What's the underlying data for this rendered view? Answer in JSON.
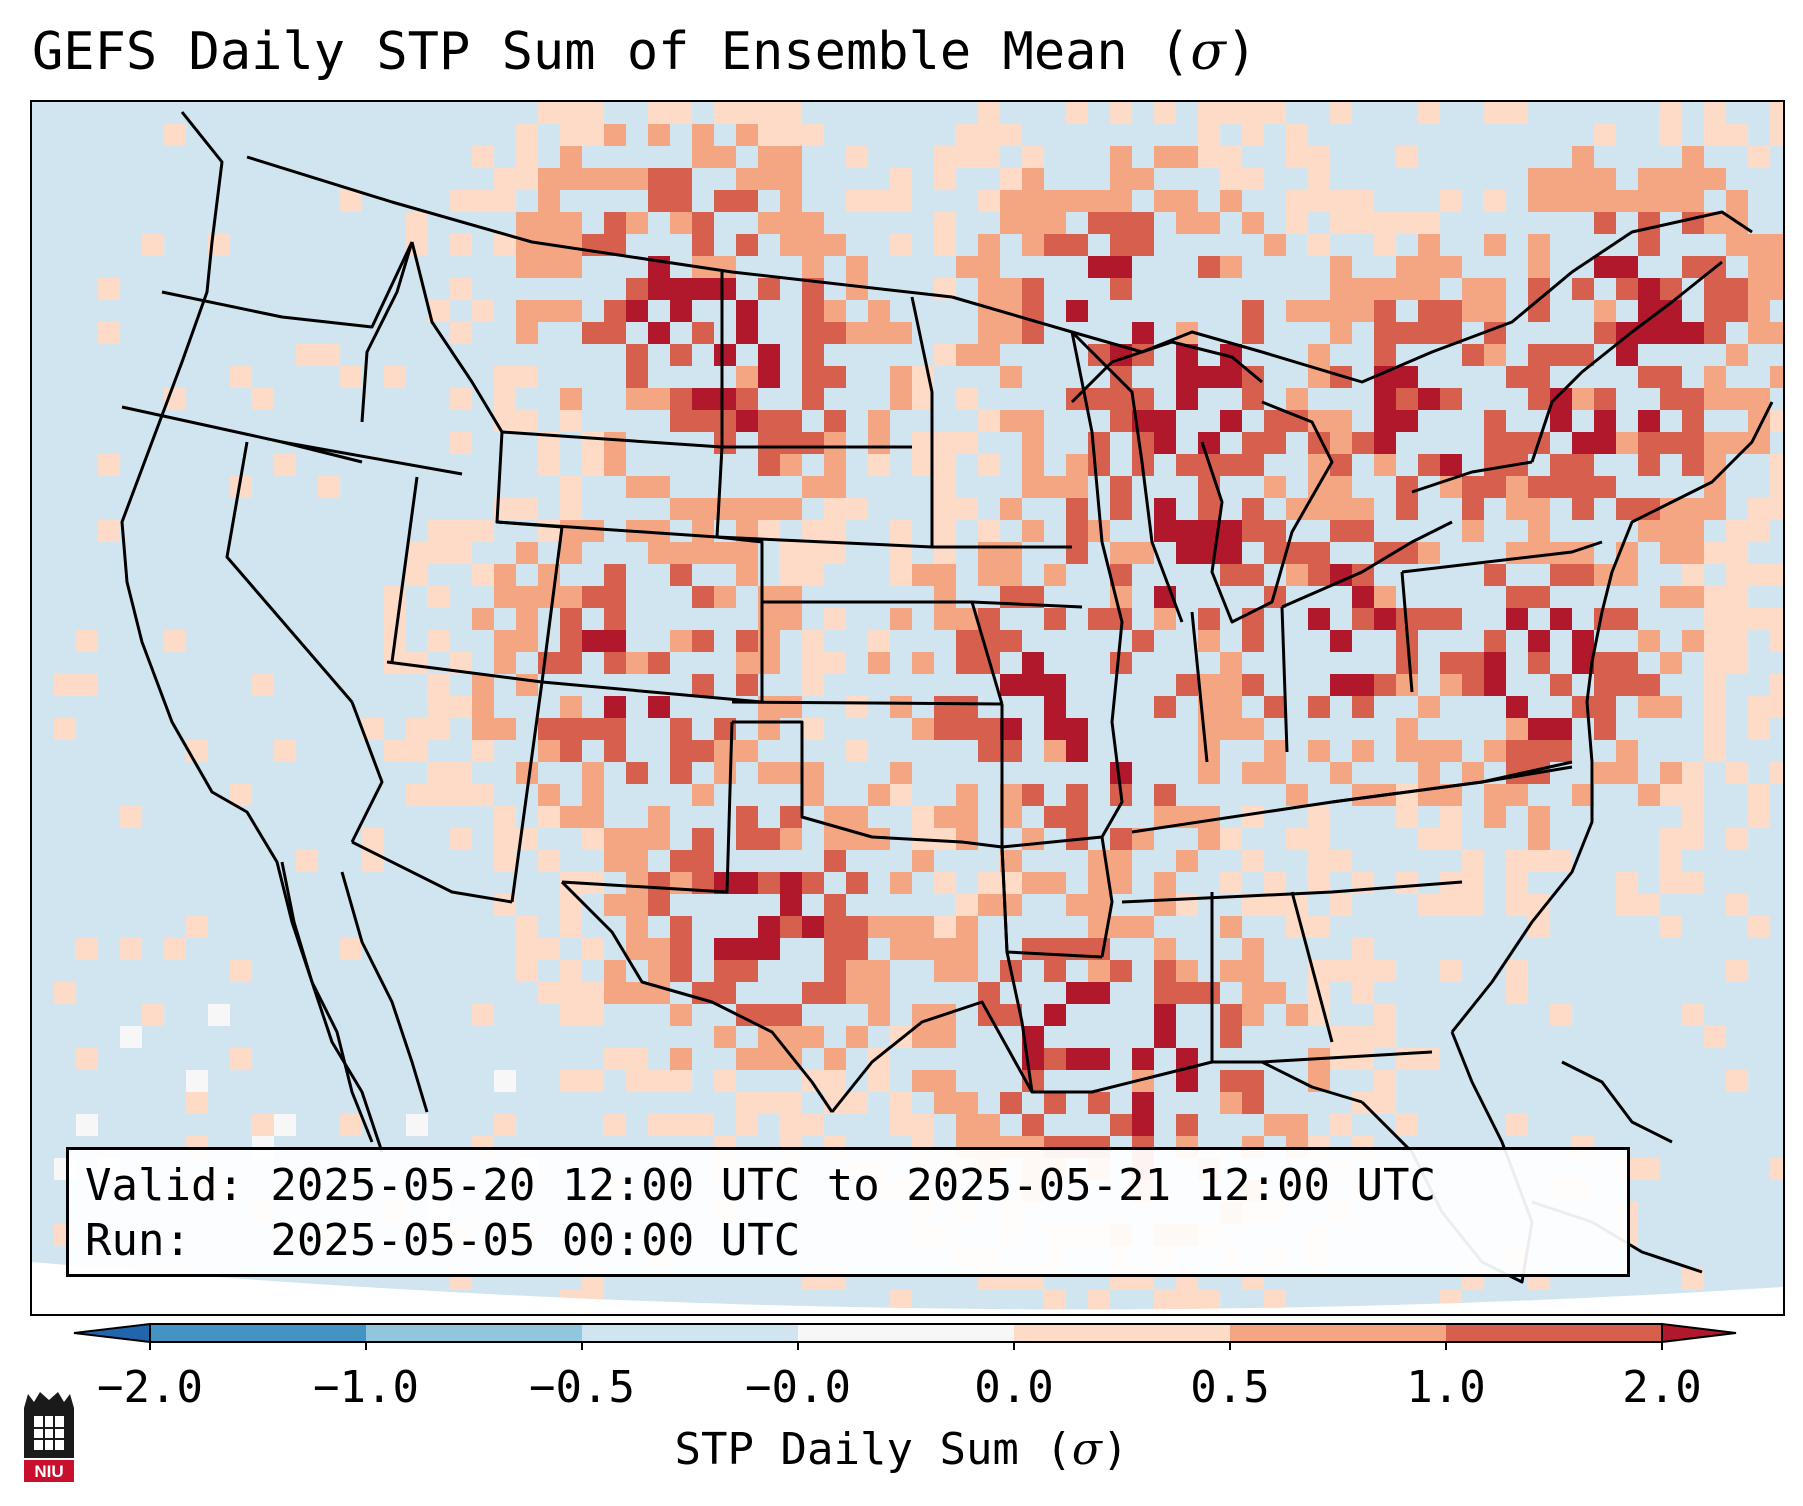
{
  "title": {
    "main": "GEFS Daily STP Sum of Ensemble Mean (",
    "sigma": "σ",
    "close": ")"
  },
  "info": {
    "valid_line": "Valid: 2025-05-20 12:00 UTC to 2025-05-21 12:00 UTC",
    "run_line": "Run:   2025-05-05 00:00 UTC"
  },
  "colorbar": {
    "ticks": [
      "−2.0",
      "−1.0",
      "−0.5",
      "−0.0",
      "0.0",
      "0.5",
      "1.0",
      "2.0"
    ],
    "label_main": "STP Daily Sum (",
    "label_sigma": "σ",
    "label_close": ")",
    "colors": {
      "extend_low": "#2166ac",
      "bin_-2_-1": "#4393c3",
      "bin_-1_-05": "#92c5de",
      "bin_-05_0": "#d1e5f0",
      "bin_0_neutral": "#f7f7f7",
      "bin_0_05": "#fddbc7",
      "bin_05_1": "#f4a582",
      "bin_1_2": "#d6604d",
      "extend_high": "#b2182b"
    }
  },
  "map": {
    "background_color": "#d1e5f0",
    "outside_domain_color": "#ffffff",
    "border_color": "#000000"
  },
  "logo": {
    "text": "NIU"
  }
}
